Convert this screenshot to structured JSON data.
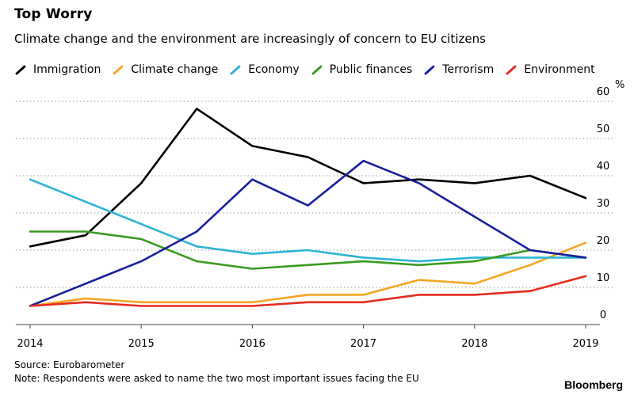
{
  "title": "Top Worry",
  "subtitle": "Climate change and the environment are increasingly of concern to EU citizens",
  "percent_unit": "%",
  "source": "Source: Eurobarometer",
  "note": "Note: Respondents were asked to name the two most important issues facing the EU",
  "brand": "Bloomberg",
  "legend": [
    {
      "label": "Immigration",
      "color": "#000000"
    },
    {
      "label": "Climate change",
      "color": "#f5a623"
    },
    {
      "label": "Economy",
      "color": "#2bb5d3"
    },
    {
      "label": "Public finances",
      "color": "#3a9a1f"
    },
    {
      "label": "Terrorism",
      "color": "#1a1f9c"
    },
    {
      "label": "Environment",
      "color": "#e52b1d"
    }
  ],
  "chart_data": {
    "type": "line",
    "title": "Top Worry",
    "xlabel": "",
    "ylabel": "%",
    "x": [
      2014,
      2014.5,
      2015,
      2015.5,
      2016,
      2016.5,
      2017,
      2017.5,
      2018,
      2018.5,
      2019
    ],
    "x_ticks": [
      "2014",
      "2015",
      "2016",
      "2017",
      "2018",
      "2019"
    ],
    "y_ticks": [
      "0",
      "10",
      "20",
      "30",
      "40",
      "50",
      "60"
    ],
    "ylim": [
      0,
      60
    ],
    "series": [
      {
        "name": "Immigration",
        "color": "#000000",
        "values": [
          21,
          24,
          38,
          58,
          48,
          45,
          38,
          39,
          38,
          40,
          34
        ]
      },
      {
        "name": "Climate change",
        "color": "#f5a623",
        "values": [
          5,
          7,
          6,
          6,
          6,
          8,
          8,
          12,
          11,
          16,
          22
        ]
      },
      {
        "name": "Economy",
        "color": "#2bb5d3",
        "values": [
          39,
          33,
          27,
          21,
          19,
          20,
          18,
          17,
          18,
          18,
          18
        ]
      },
      {
        "name": "Public finances",
        "color": "#3a9a1f",
        "values": [
          25,
          25,
          23,
          17,
          15,
          16,
          17,
          16,
          17,
          20,
          18
        ]
      },
      {
        "name": "Terrorism",
        "color": "#1a1f9c",
        "values": [
          5,
          11,
          17,
          25,
          39,
          32,
          44,
          38,
          29,
          20,
          18
        ]
      },
      {
        "name": "Environment",
        "color": "#e52b1d",
        "values": [
          5,
          6,
          5,
          5,
          5,
          6,
          6,
          8,
          8,
          9,
          13
        ]
      }
    ]
  }
}
